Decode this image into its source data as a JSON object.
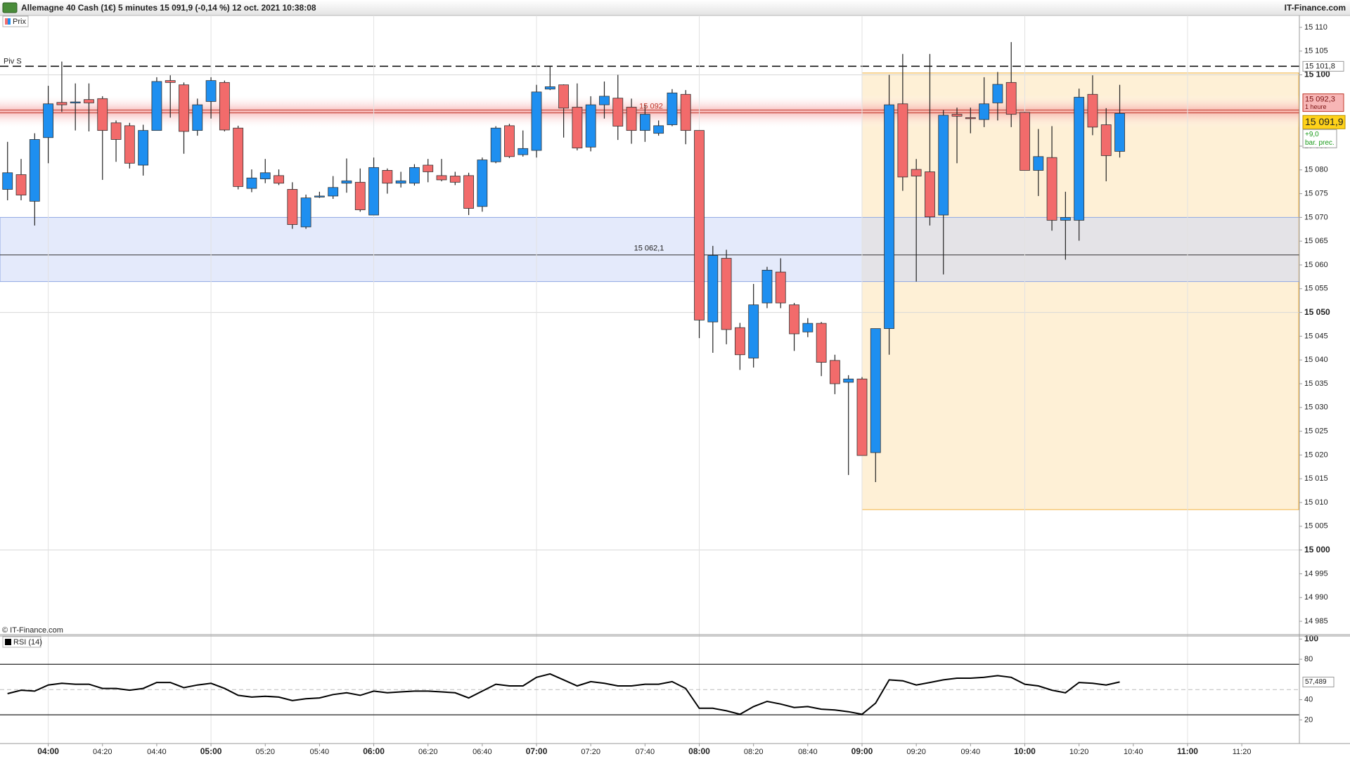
{
  "header": {
    "title": "Allemagne 40 Cash (1€) 5 minutes 15 091,9 (-0,14 %) 12 oct. 2021 10:38:08",
    "brand": "IT-Finance.com",
    "copyright": "© IT-Finance.com"
  },
  "chart_data": [
    {
      "type": "candlestick",
      "legend": "Prix",
      "x": [
        "03:45",
        "03:50",
        "03:55",
        "04:00",
        "04:05",
        "04:10",
        "04:15",
        "04:20",
        "04:25",
        "04:30",
        "04:35",
        "04:40",
        "04:45",
        "04:50",
        "04:55",
        "05:00",
        "05:05",
        "05:10",
        "05:15",
        "05:20",
        "05:25",
        "05:30",
        "05:35",
        "05:40",
        "05:45",
        "05:50",
        "05:55",
        "06:00",
        "06:05",
        "06:10",
        "06:15",
        "06:20",
        "06:25",
        "06:30",
        "06:35",
        "06:40",
        "06:45",
        "06:50",
        "06:55",
        "07:00",
        "07:05",
        "07:10",
        "07:15",
        "07:20",
        "07:25",
        "07:30",
        "07:35",
        "07:40",
        "07:45",
        "07:50",
        "07:55",
        "08:00",
        "08:05",
        "08:10",
        "08:15",
        "08:20",
        "08:25",
        "08:30",
        "08:35",
        "08:40",
        "08:45",
        "08:50",
        "08:55",
        "09:00",
        "09:05",
        "09:10",
        "09:15",
        "09:20",
        "09:25",
        "09:30",
        "09:35",
        "09:40",
        "09:45",
        "09:50",
        "09:55",
        "10:00",
        "10:05",
        "10:10",
        "10:15",
        "10:20",
        "10:25",
        "10:30",
        "10:35"
      ],
      "open": [
        15075.9,
        15079.0,
        15073.4,
        15086.8,
        15094.2,
        15094.3,
        15094.8,
        15095.0,
        15089.9,
        15089.3,
        15081.0,
        15088.3,
        15098.8,
        15097.9,
        15088.3,
        15094.4,
        15098.4,
        15088.8,
        15076.1,
        15078.1,
        15078.8,
        15075.9,
        15068.0,
        15074.3,
        15074.5,
        15077.2,
        15077.4,
        15070.5,
        15079.9,
        15077.2,
        15077.2,
        15081.0,
        15078.8,
        15078.7,
        15078.8,
        15072.3,
        15081.7,
        15089.3,
        15083.2,
        15084.1,
        15097.0,
        15097.9,
        15093.2,
        15084.8,
        15093.7,
        15095.1,
        15093.2,
        15088.3,
        15087.7,
        15089.5,
        15095.9,
        15088.3,
        15048.0,
        15061.4,
        15046.8,
        15040.4,
        15052.0,
        15058.5,
        15051.6,
        15045.9,
        15047.7,
        15039.9,
        15035.3,
        15036.0,
        15020.5,
        15046.6,
        15093.9,
        15080.1,
        15079.6,
        15070.5,
        15091.7,
        15091.0,
        15090.6,
        15094.1,
        15098.4,
        15092.1,
        15079.9,
        15082.6,
        15069.4,
        15069.4,
        15095.9,
        15089.5,
        15083.9
      ],
      "high": [
        15085.9,
        15082.3,
        15087.7,
        15097.7,
        15102.8,
        15098.2,
        15098.2,
        15095.5,
        15090.4,
        15089.9,
        15089.5,
        15099.5,
        15099.9,
        15098.4,
        15095.0,
        15099.5,
        15098.8,
        15089.3,
        15080.1,
        15082.3,
        15080.1,
        15077.4,
        15074.8,
        15075.4,
        15078.7,
        15082.4,
        15080.3,
        15082.6,
        15080.3,
        15079.6,
        15081.2,
        15082.3,
        15082.3,
        15079.6,
        15079.4,
        15082.6,
        15089.2,
        15089.7,
        15088.3,
        15097.9,
        15101.7,
        15098.0,
        15098.2,
        15095.5,
        15098.6,
        15100.0,
        15095.0,
        15093.7,
        15090.4,
        15097.0,
        15096.8,
        15088.3,
        15064.0,
        15063.2,
        15047.8,
        15056.0,
        15059.6,
        15061.4,
        15052.0,
        15048.8,
        15048.0,
        15041.1,
        15036.8,
        15036.4,
        15046.6,
        15100.0,
        15104.4,
        15082.3,
        15104.4,
        15092.6,
        15093.1,
        15093.1,
        15099.5,
        15100.6,
        15106.9,
        15092.2,
        15088.6,
        15089.2,
        15075.4,
        15097.1,
        15099.9,
        15093.0,
        15097.9
      ],
      "low": [
        15073.6,
        15073.6,
        15068.3,
        15081.4,
        15092.2,
        15088.3,
        15088.1,
        15077.9,
        15081.7,
        15080.3,
        15078.8,
        15088.3,
        15091.0,
        15083.4,
        15087.2,
        15090.8,
        15088.1,
        15075.9,
        15075.3,
        15077.2,
        15076.8,
        15067.6,
        15067.6,
        15074.1,
        15073.9,
        15075.2,
        15071.2,
        15070.5,
        15075.0,
        15076.3,
        15076.7,
        15077.4,
        15077.6,
        15076.8,
        15070.5,
        15071.2,
        15081.4,
        15082.5,
        15082.8,
        15082.6,
        15096.8,
        15086.8,
        15084.1,
        15083.9,
        15090.8,
        15086.3,
        15085.5,
        15085.9,
        15087.2,
        15089.2,
        15085.4,
        15044.6,
        15041.5,
        15043.3,
        15037.9,
        15038.4,
        15050.9,
        15050.9,
        15041.9,
        15044.8,
        15036.6,
        15032.8,
        15015.8,
        15019.9,
        15014.3,
        15041.1,
        15075.6,
        15056.5,
        15068.3,
        15058.0,
        15081.4,
        15087.7,
        15089.0,
        15090.4,
        15089.0,
        15079.9,
        15074.5,
        15067.2,
        15061.1,
        15065.1,
        15087.3,
        15077.6,
        15082.6
      ],
      "close": [
        15079.4,
        15074.7,
        15086.4,
        15093.9,
        15093.7,
        15094.3,
        15094.1,
        15088.3,
        15086.4,
        15081.4,
        15088.3,
        15098.6,
        15098.4,
        15088.1,
        15093.7,
        15098.8,
        15088.4,
        15076.5,
        15078.3,
        15079.4,
        15077.2,
        15068.5,
        15074.1,
        15074.5,
        15076.3,
        15077.7,
        15071.6,
        15080.5,
        15077.2,
        15077.7,
        15080.5,
        15079.6,
        15077.9,
        15077.4,
        15071.9,
        15082.1,
        15088.8,
        15082.8,
        15084.5,
        15096.4,
        15097.5,
        15093.0,
        15084.6,
        15093.7,
        15095.5,
        15089.2,
        15088.3,
        15091.7,
        15089.3,
        15096.2,
        15088.3,
        15048.4,
        15062.0,
        15046.4,
        15041.1,
        15051.6,
        15058.9,
        15052.0,
        15045.5,
        15047.7,
        15039.5,
        15035.0,
        15036.0,
        15019.9,
        15046.6,
        15093.7,
        15078.5,
        15078.7,
        15070.1,
        15091.5,
        15091.3,
        15090.8,
        15093.9,
        15098.0,
        15091.7,
        15079.9,
        15082.8,
        15069.4,
        15070.0,
        15095.3,
        15089.0,
        15083.0,
        15091.9
      ],
      "up_color": "#1e8ff0",
      "down_color": "#f26b6b",
      "ylim": [
        14982.2,
        15112.5
      ],
      "yticks": [
        {
          "value": 14985,
          "label": "14 985"
        },
        {
          "value": 14990,
          "label": "14 990"
        },
        {
          "value": 14995,
          "label": "14 995"
        },
        {
          "value": 15000,
          "label": "15 000"
        },
        {
          "value": 15005,
          "label": "15 005"
        },
        {
          "value": 15010,
          "label": "15 010"
        },
        {
          "value": 15015,
          "label": "15 015"
        },
        {
          "value": 15020,
          "label": "15 020"
        },
        {
          "value": 15025,
          "label": "15 025"
        },
        {
          "value": 15030,
          "label": "15 030"
        },
        {
          "value": 15035,
          "label": "15 035"
        },
        {
          "value": 15040,
          "label": "15 040"
        },
        {
          "value": 15045,
          "label": "15 045"
        },
        {
          "value": 15050,
          "label": "15 050"
        },
        {
          "value": 15055,
          "label": "15 055"
        },
        {
          "value": 15060,
          "label": "15 060"
        },
        {
          "value": 15065,
          "label": "15 065"
        },
        {
          "value": 15070,
          "label": "15 070"
        },
        {
          "value": 15075,
          "label": "15 075"
        },
        {
          "value": 15080,
          "label": "15 080"
        },
        {
          "value": 15085,
          "label": "15 085"
        },
        {
          "value": 15100,
          "label": "15 100"
        },
        {
          "value": 15105,
          "label": "15 105"
        },
        {
          "value": 15110,
          "label": "15 110"
        }
      ],
      "xticks": [
        "04:00",
        "04:20",
        "04:40",
        "05:00",
        "05:20",
        "05:40",
        "06:00",
        "06:20",
        "06:40",
        "07:00",
        "07:20",
        "07:40",
        "08:00",
        "08:20",
        "08:40",
        "09:00",
        "09:20",
        "09:40",
        "10:00",
        "10:20",
        "10:40",
        "11:00",
        "11:20"
      ],
      "pivot": {
        "name": "Piv S",
        "value": 15101.8,
        "label": "15 101,8"
      },
      "hour_level": {
        "value": 15092.3,
        "label": "15 092,3",
        "chart_label": "15 092",
        "period": "1 heure"
      },
      "zone": {
        "top": 15070,
        "bottom": 15056.5,
        "level": 15062.1,
        "label": "15 062,1"
      },
      "session_box": {
        "start": "09:00",
        "top": 15100.4,
        "bottom": 15008.5
      },
      "last": {
        "value": 15091.9,
        "label": "15 091,9",
        "change": "+9,0",
        "change_note": "bar. prec."
      }
    },
    {
      "type": "line",
      "series": [
        {
          "name": "RSI (14)",
          "color": "#000000",
          "values": [
            46.0,
            49.4,
            48.5,
            54.5,
            56.2,
            55.3,
            55.3,
            51.1,
            51.1,
            49.4,
            51.1,
            57.0,
            57.0,
            51.9,
            54.5,
            56.2,
            51.1,
            44.3,
            42.6,
            43.4,
            42.6,
            39.1,
            40.9,
            41.7,
            45.1,
            46.8,
            44.3,
            48.5,
            46.8,
            47.7,
            48.5,
            48.5,
            47.7,
            46.8,
            41.7,
            48.5,
            55.3,
            53.6,
            53.6,
            62.1,
            65.5,
            59.6,
            53.6,
            57.9,
            56.2,
            53.6,
            53.6,
            55.3,
            55.3,
            57.9,
            51.1,
            31.5,
            31.5,
            29.0,
            25.5,
            33.2,
            38.3,
            35.7,
            32.3,
            33.2,
            30.6,
            29.8,
            28.1,
            25.5,
            36.6,
            59.6,
            58.7,
            54.5,
            57.0,
            59.6,
            61.3,
            61.3,
            62.1,
            63.8,
            62.1,
            55.3,
            53.6,
            49.4,
            46.8,
            57.0,
            56.2,
            54.5,
            57.489
          ],
          "last_label": "57,489"
        }
      ],
      "ylim": [
        -3.4,
        103
      ],
      "yticks": [
        20,
        40,
        80,
        100
      ],
      "bands": [
        25,
        75
      ],
      "midline": 50
    }
  ]
}
